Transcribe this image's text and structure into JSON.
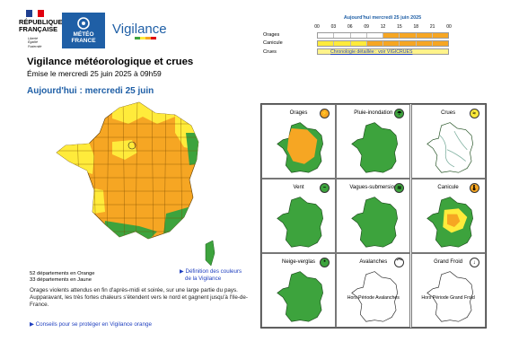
{
  "header": {
    "republique": [
      "RÉPUBLIQUE",
      "FRANÇAISE"
    ],
    "motto": [
      "Liberté",
      "Égalité",
      "Fraternité"
    ],
    "meteo_logo": [
      "MÉTÉO",
      "FRANCE"
    ],
    "brand": "Vigilance"
  },
  "timeline": {
    "title": "Aujourd'hui mercredi 25 juin 2025",
    "hours": [
      "00",
      "03",
      "06",
      "09",
      "12",
      "15",
      "18",
      "21",
      "00"
    ],
    "rows": [
      {
        "label": "Orages",
        "colors": [
          "#ffffff",
          "#ffffff",
          "#ffffff",
          "#ffffff",
          "#f6a623",
          "#f6a623",
          "#f6a623",
          "#f6a623"
        ]
      },
      {
        "label": "Canicule",
        "colors": [
          "#ffeb3b",
          "#ffeb3b",
          "#ffeb3b",
          "#f6a623",
          "#f6a623",
          "#f6a623",
          "#f6a623",
          "#f6a623"
        ]
      },
      {
        "label": "Crues",
        "link_text": "Chronologie détaillée : voir VIGICRUES"
      }
    ]
  },
  "title": "Vigilance météorologique et crues",
  "emise": "Émise le mercredi 25 juin 2025 à 09h59",
  "today": "Aujourd'hui : mercredi 25 juin",
  "stats": {
    "orange": "52 départements en Orange",
    "jaune": "33 départements en Jaune"
  },
  "definition_link": [
    "▶ Définition des couleurs",
    "de la Vigilance"
  ],
  "comment": "Orages violents attendus en fin d'après-midi et soirée, sur une large partie du pays. Aupparavant, les très fortes chaleurs s'étendent vers le nord et gagnent jusqu'à l'Ile-de-France.",
  "conseils": "▶ Conseils pour se protéger en Vigilance orange",
  "phenomena": [
    {
      "name": "Orages",
      "level_color": "#f6a623",
      "icon": "⚡"
    },
    {
      "name": "Pluie-inondation",
      "level_color": "#3da33d",
      "icon": "☂"
    },
    {
      "name": "Crues",
      "level_color": "#ffeb3b",
      "icon": "≈"
    },
    {
      "name": "Vent",
      "level_color": "#3da33d",
      "icon": "~"
    },
    {
      "name": "Vagues-submersion",
      "level_color": "#3da33d",
      "icon": "≋"
    },
    {
      "name": "Canicule",
      "level_color": "#f6a623",
      "icon": "🌡"
    },
    {
      "name": "Neige-verglas",
      "level_color": "#3da33d",
      "icon": "*"
    },
    {
      "name": "Avalanches",
      "level_color": "#ffffff",
      "icon": "⌒",
      "note": "Hors Période Avalanches"
    },
    {
      "name": "Grand Froid",
      "level_color": "#ffffff",
      "icon": "↓",
      "note": "Hors Période Grand Froid"
    }
  ],
  "colors": {
    "orange": "#f6a623",
    "yellow": "#ffeb3b",
    "green": "#3da33d",
    "blue": "#1f5fa6"
  }
}
